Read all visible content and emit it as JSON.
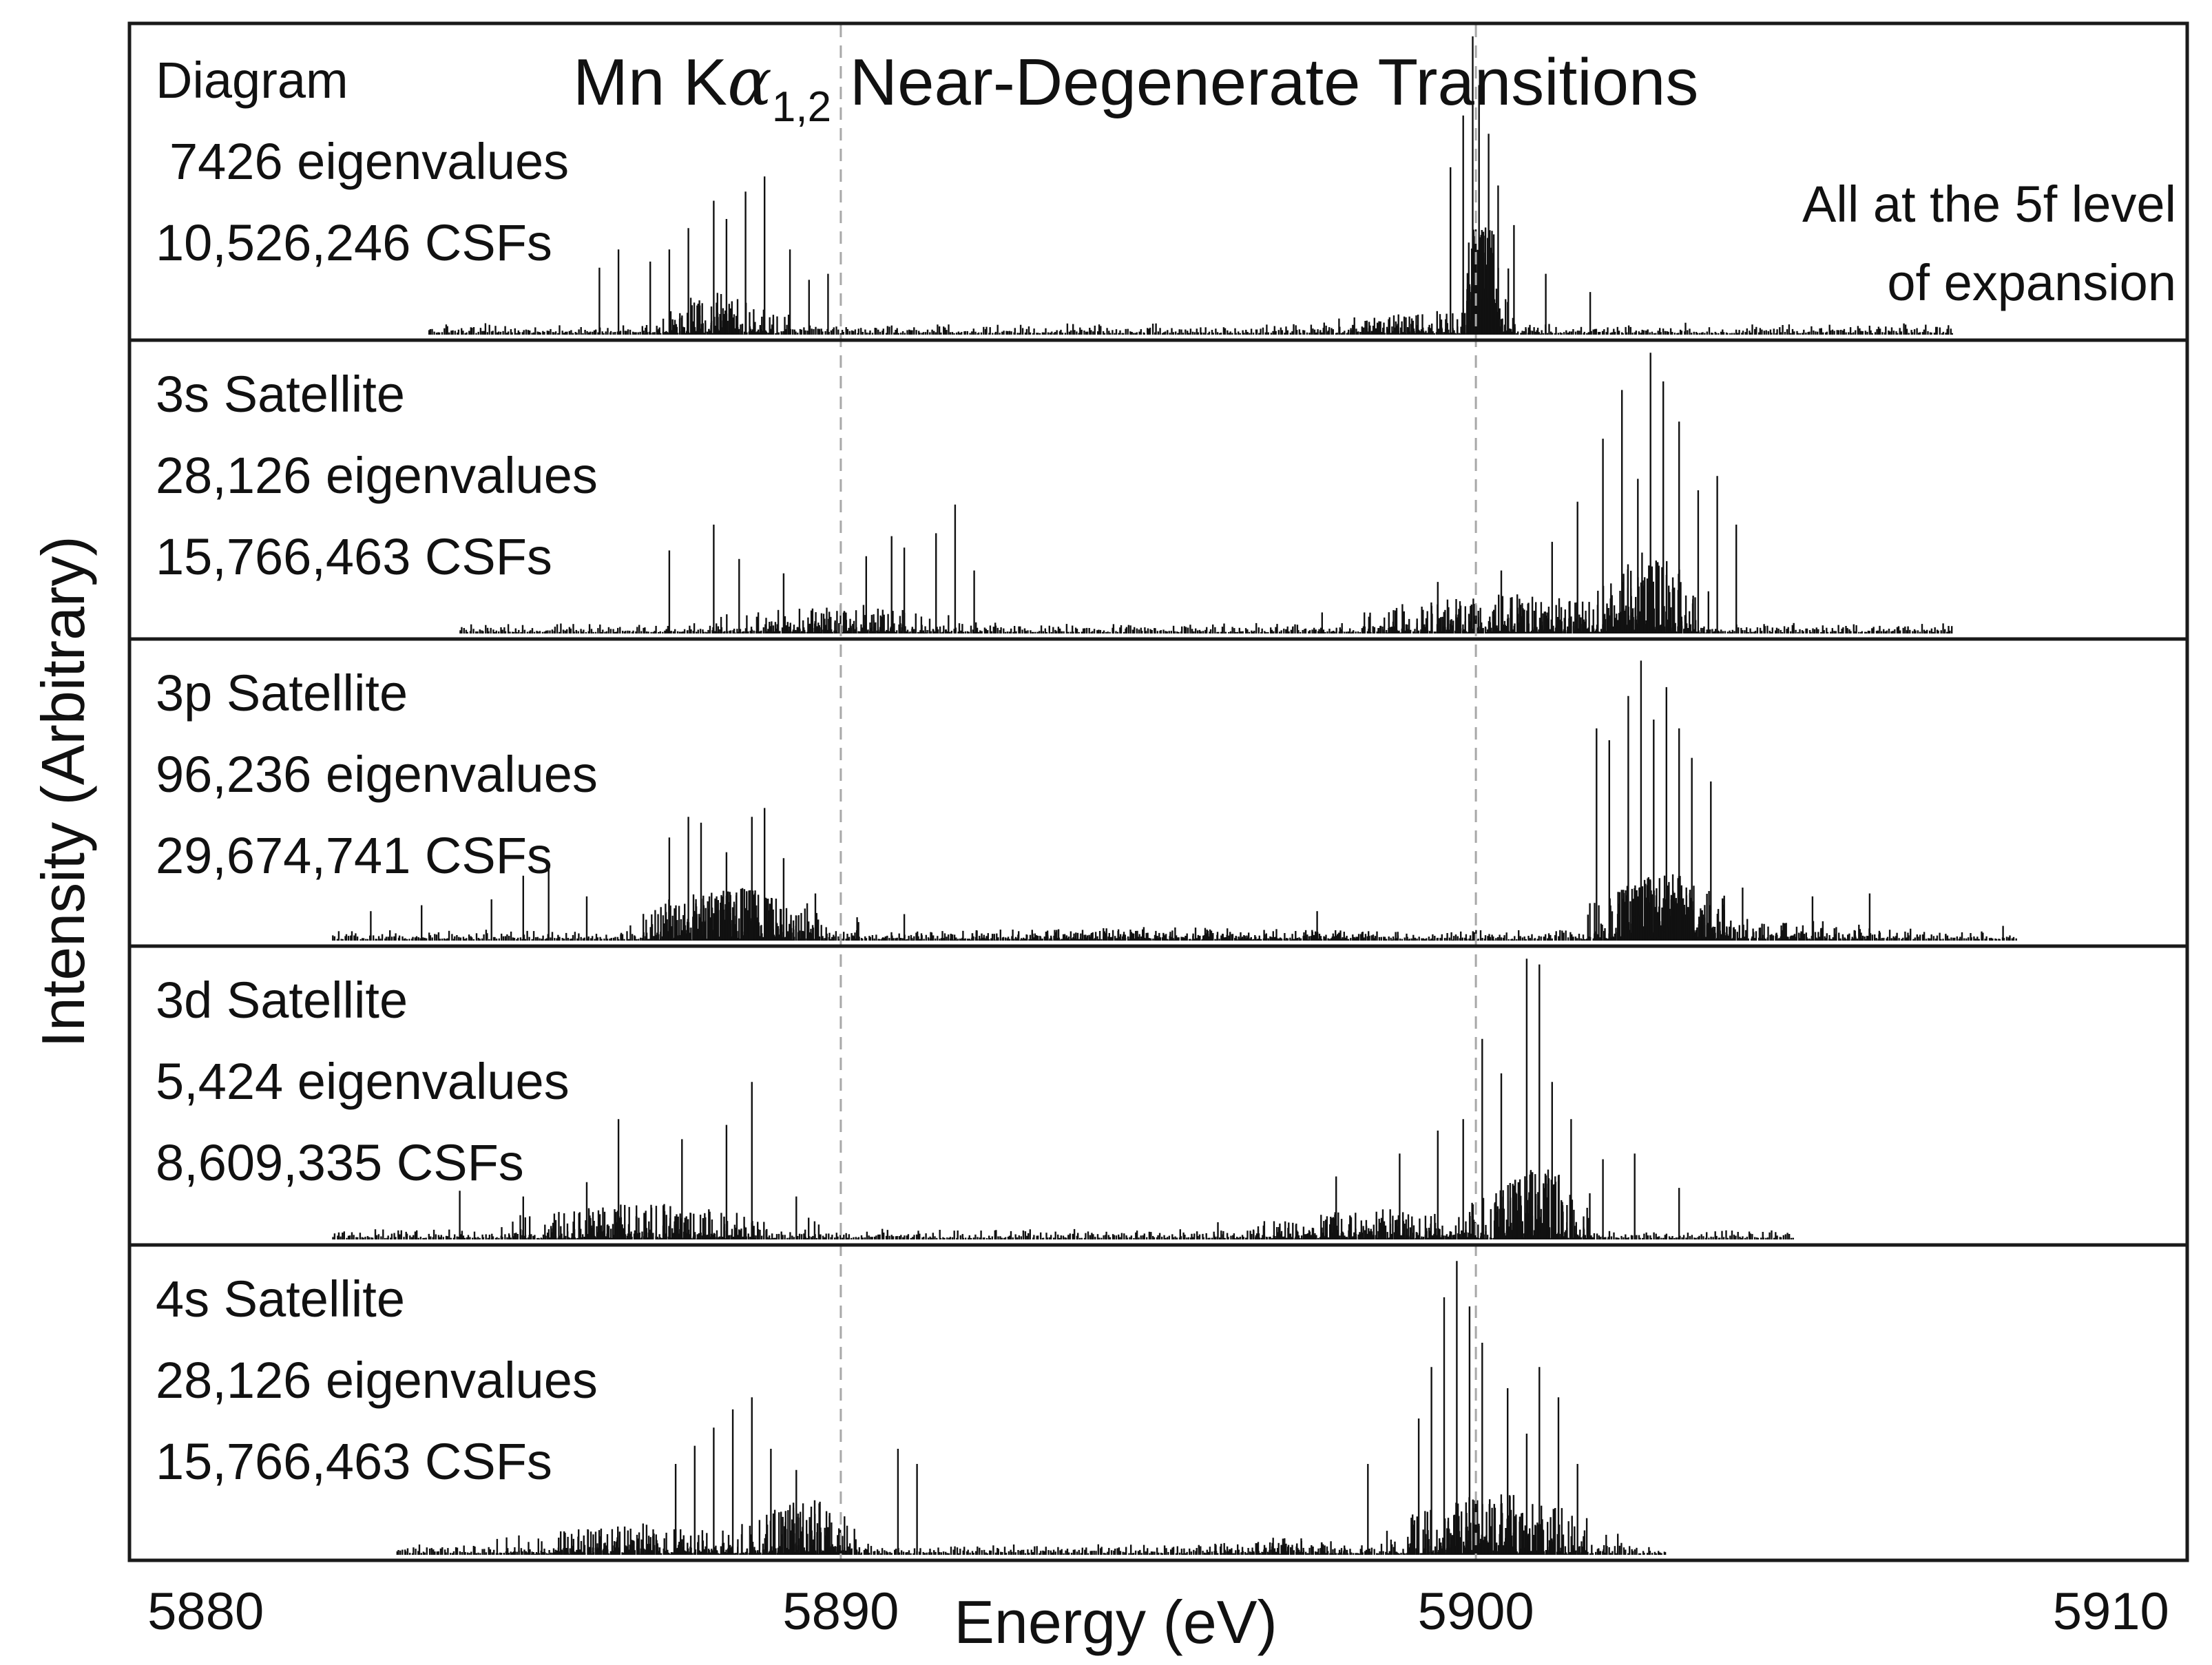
{
  "chart_data": {
    "type": "stick-spectrum",
    "title": "Mn Kα₁,₂ Near-Degenerate Transitions",
    "title_main": "Mn K",
    "title_alpha": "α",
    "title_sub": "1,2",
    "title_tail": " Near-Degenerate Transitions",
    "note": [
      "All at the 5f level",
      "of expansion"
    ],
    "xlabel": "Energy (eV)",
    "ylabel": "Intensity (Arbitrary)",
    "xlim": [
      5878.8,
      5911.2
    ],
    "xticks": [
      5880,
      5890,
      5900,
      5910
    ],
    "reference_lines_ev": [
      5890.0,
      5900.0
    ],
    "panels": [
      {
        "name": "Diagram",
        "label": "Diagram",
        "eigenvalues": "7426 eigenvalues",
        "csfs": "10,526,246 CSFs",
        "ylim": [
          0,
          1.0
        ],
        "range": [
          5883.5,
          5907.5
        ],
        "clusters": [
          {
            "center": 5888.0,
            "width": 1.5,
            "density": 60,
            "amp": 0.12
          },
          {
            "center": 5899.3,
            "width": 2.4,
            "density": 60,
            "amp": 0.07
          },
          {
            "center": 5900.1,
            "width": 0.5,
            "density": 70,
            "amp": 0.35
          }
        ],
        "peaks": [
          {
            "x": 5886.2,
            "y": 0.22
          },
          {
            "x": 5886.5,
            "y": 0.28
          },
          {
            "x": 5887.0,
            "y": 0.24
          },
          {
            "x": 5887.3,
            "y": 0.28
          },
          {
            "x": 5887.6,
            "y": 0.35
          },
          {
            "x": 5888.0,
            "y": 0.44
          },
          {
            "x": 5888.2,
            "y": 0.38
          },
          {
            "x": 5888.5,
            "y": 0.47
          },
          {
            "x": 5888.8,
            "y": 0.52
          },
          {
            "x": 5889.2,
            "y": 0.28
          },
          {
            "x": 5889.5,
            "y": 0.18
          },
          {
            "x": 5889.8,
            "y": 0.2
          },
          {
            "x": 5899.6,
            "y": 0.55
          },
          {
            "x": 5899.8,
            "y": 0.72
          },
          {
            "x": 5899.95,
            "y": 0.98
          },
          {
            "x": 5900.05,
            "y": 0.82
          },
          {
            "x": 5900.2,
            "y": 0.66
          },
          {
            "x": 5900.35,
            "y": 0.49
          },
          {
            "x": 5900.6,
            "y": 0.36
          },
          {
            "x": 5901.1,
            "y": 0.2
          },
          {
            "x": 5901.8,
            "y": 0.14
          }
        ]
      },
      {
        "name": "3s-satellite",
        "label": "3s Satellite",
        "eigenvalues": "28,126 eigenvalues",
        "csfs": "15,766,463 CSFs",
        "ylim": [
          0,
          1.0
        ],
        "range": [
          5884.0,
          5907.5
        ],
        "clusters": [
          {
            "center": 5890.0,
            "width": 2.8,
            "density": 80,
            "amp": 0.09
          },
          {
            "center": 5900.5,
            "width": 3.6,
            "density": 120,
            "amp": 0.12
          },
          {
            "center": 5902.7,
            "width": 1.2,
            "density": 60,
            "amp": 0.25
          }
        ],
        "peaks": [
          {
            "x": 5887.3,
            "y": 0.29
          },
          {
            "x": 5888.0,
            "y": 0.38
          },
          {
            "x": 5888.4,
            "y": 0.26
          },
          {
            "x": 5889.1,
            "y": 0.21
          },
          {
            "x": 5890.4,
            "y": 0.27
          },
          {
            "x": 5890.8,
            "y": 0.34
          },
          {
            "x": 5891.0,
            "y": 0.3
          },
          {
            "x": 5891.5,
            "y": 0.35
          },
          {
            "x": 5891.8,
            "y": 0.45
          },
          {
            "x": 5892.1,
            "y": 0.22
          },
          {
            "x": 5899.4,
            "y": 0.18
          },
          {
            "x": 5900.4,
            "y": 0.22
          },
          {
            "x": 5901.2,
            "y": 0.32
          },
          {
            "x": 5901.6,
            "y": 0.46
          },
          {
            "x": 5902.0,
            "y": 0.68
          },
          {
            "x": 5902.3,
            "y": 0.85
          },
          {
            "x": 5902.55,
            "y": 0.54
          },
          {
            "x": 5902.75,
            "y": 0.98
          },
          {
            "x": 5902.95,
            "y": 0.88
          },
          {
            "x": 5903.2,
            "y": 0.74
          },
          {
            "x": 5903.5,
            "y": 0.5
          },
          {
            "x": 5903.8,
            "y": 0.55
          },
          {
            "x": 5904.1,
            "y": 0.38
          }
        ]
      },
      {
        "name": "3p-satellite",
        "label": "3p Satellite",
        "eigenvalues": "96,236 eigenvalues",
        "csfs": "29,674,741 CSFs",
        "ylim": [
          0,
          1.0
        ],
        "range": [
          5882.0,
          5908.5
        ],
        "clusters": [
          {
            "center": 5888.3,
            "width": 2.2,
            "density": 140,
            "amp": 0.16
          },
          {
            "center": 5895.0,
            "width": 6.5,
            "density": 120,
            "amp": 0.04
          },
          {
            "center": 5903.0,
            "width": 1.6,
            "density": 140,
            "amp": 0.2
          },
          {
            "center": 5905.2,
            "width": 2.5,
            "density": 40,
            "amp": 0.06
          }
        ],
        "peaks": [
          {
            "x": 5882.6,
            "y": 0.1
          },
          {
            "x": 5883.4,
            "y": 0.12
          },
          {
            "x": 5884.5,
            "y": 0.14
          },
          {
            "x": 5885.0,
            "y": 0.22
          },
          {
            "x": 5885.4,
            "y": 0.25
          },
          {
            "x": 5886.0,
            "y": 0.15
          },
          {
            "x": 5887.3,
            "y": 0.35
          },
          {
            "x": 5887.6,
            "y": 0.42
          },
          {
            "x": 5887.8,
            "y": 0.4
          },
          {
            "x": 5888.2,
            "y": 0.3
          },
          {
            "x": 5888.6,
            "y": 0.42
          },
          {
            "x": 5888.8,
            "y": 0.45
          },
          {
            "x": 5889.1,
            "y": 0.28
          },
          {
            "x": 5889.6,
            "y": 0.16
          },
          {
            "x": 5891.0,
            "y": 0.09
          },
          {
            "x": 5897.5,
            "y": 0.1
          },
          {
            "x": 5901.9,
            "y": 0.72
          },
          {
            "x": 5902.1,
            "y": 0.68
          },
          {
            "x": 5902.4,
            "y": 0.83
          },
          {
            "x": 5902.6,
            "y": 0.95
          },
          {
            "x": 5902.8,
            "y": 0.75
          },
          {
            "x": 5903.0,
            "y": 0.86
          },
          {
            "x": 5903.2,
            "y": 0.72
          },
          {
            "x": 5903.4,
            "y": 0.62
          },
          {
            "x": 5903.7,
            "y": 0.54
          },
          {
            "x": 5904.2,
            "y": 0.18
          },
          {
            "x": 5905.3,
            "y": 0.15
          },
          {
            "x": 5906.2,
            "y": 0.16
          },
          {
            "x": 5908.3,
            "y": 0.05
          }
        ]
      },
      {
        "name": "3d-satellite",
        "label": "3d Satellite",
        "eigenvalues": "5,424 eigenvalues",
        "csfs": "8,609,335 CSFs",
        "ylim": [
          0,
          1.0
        ],
        "range": [
          5882.0,
          5905.0
        ],
        "clusters": [
          {
            "center": 5887.0,
            "width": 3.5,
            "density": 100,
            "amp": 0.11
          },
          {
            "center": 5898.5,
            "width": 3.5,
            "density": 100,
            "amp": 0.09
          },
          {
            "center": 5901.0,
            "width": 1.4,
            "density": 80,
            "amp": 0.22
          }
        ],
        "peaks": [
          {
            "x": 5884.0,
            "y": 0.17
          },
          {
            "x": 5885.0,
            "y": 0.15
          },
          {
            "x": 5886.0,
            "y": 0.2
          },
          {
            "x": 5886.5,
            "y": 0.42
          },
          {
            "x": 5887.5,
            "y": 0.35
          },
          {
            "x": 5888.2,
            "y": 0.4
          },
          {
            "x": 5888.6,
            "y": 0.55
          },
          {
            "x": 5889.3,
            "y": 0.15
          },
          {
            "x": 5897.8,
            "y": 0.22
          },
          {
            "x": 5898.8,
            "y": 0.3
          },
          {
            "x": 5899.4,
            "y": 0.38
          },
          {
            "x": 5899.8,
            "y": 0.42
          },
          {
            "x": 5900.1,
            "y": 0.7
          },
          {
            "x": 5900.4,
            "y": 0.58
          },
          {
            "x": 5900.8,
            "y": 0.98
          },
          {
            "x": 5901.0,
            "y": 0.96
          },
          {
            "x": 5901.2,
            "y": 0.55
          },
          {
            "x": 5901.5,
            "y": 0.42
          },
          {
            "x": 5902.0,
            "y": 0.28
          },
          {
            "x": 5902.5,
            "y": 0.3
          },
          {
            "x": 5903.2,
            "y": 0.18
          }
        ]
      },
      {
        "name": "4s-satellite",
        "label": "4s Satellite",
        "eigenvalues": "28,126 eigenvalues",
        "csfs": "15,766,463 CSFs",
        "ylim": [
          0,
          1.0
        ],
        "range": [
          5883.0,
          5903.0
        ],
        "clusters": [
          {
            "center": 5887.0,
            "width": 3.2,
            "density": 100,
            "amp": 0.09
          },
          {
            "center": 5889.5,
            "width": 1.4,
            "density": 60,
            "amp": 0.16
          },
          {
            "center": 5900.3,
            "width": 2.2,
            "density": 120,
            "amp": 0.18
          },
          {
            "center": 5897.0,
            "width": 2.0,
            "density": 40,
            "amp": 0.05
          }
        ],
        "peaks": [
          {
            "x": 5887.4,
            "y": 0.3
          },
          {
            "x": 5887.7,
            "y": 0.36
          },
          {
            "x": 5888.0,
            "y": 0.42
          },
          {
            "x": 5888.3,
            "y": 0.48
          },
          {
            "x": 5888.6,
            "y": 0.52
          },
          {
            "x": 5888.9,
            "y": 0.35
          },
          {
            "x": 5889.3,
            "y": 0.28
          },
          {
            "x": 5890.9,
            "y": 0.35
          },
          {
            "x": 5891.2,
            "y": 0.3
          },
          {
            "x": 5898.3,
            "y": 0.3
          },
          {
            "x": 5899.1,
            "y": 0.45
          },
          {
            "x": 5899.3,
            "y": 0.62
          },
          {
            "x": 5899.5,
            "y": 0.85
          },
          {
            "x": 5899.7,
            "y": 0.97
          },
          {
            "x": 5899.9,
            "y": 0.82
          },
          {
            "x": 5900.1,
            "y": 0.7
          },
          {
            "x": 5900.5,
            "y": 0.55
          },
          {
            "x": 5900.8,
            "y": 0.4
          },
          {
            "x": 5901.0,
            "y": 0.62
          },
          {
            "x": 5901.3,
            "y": 0.52
          },
          {
            "x": 5901.6,
            "y": 0.3
          }
        ]
      }
    ]
  }
}
